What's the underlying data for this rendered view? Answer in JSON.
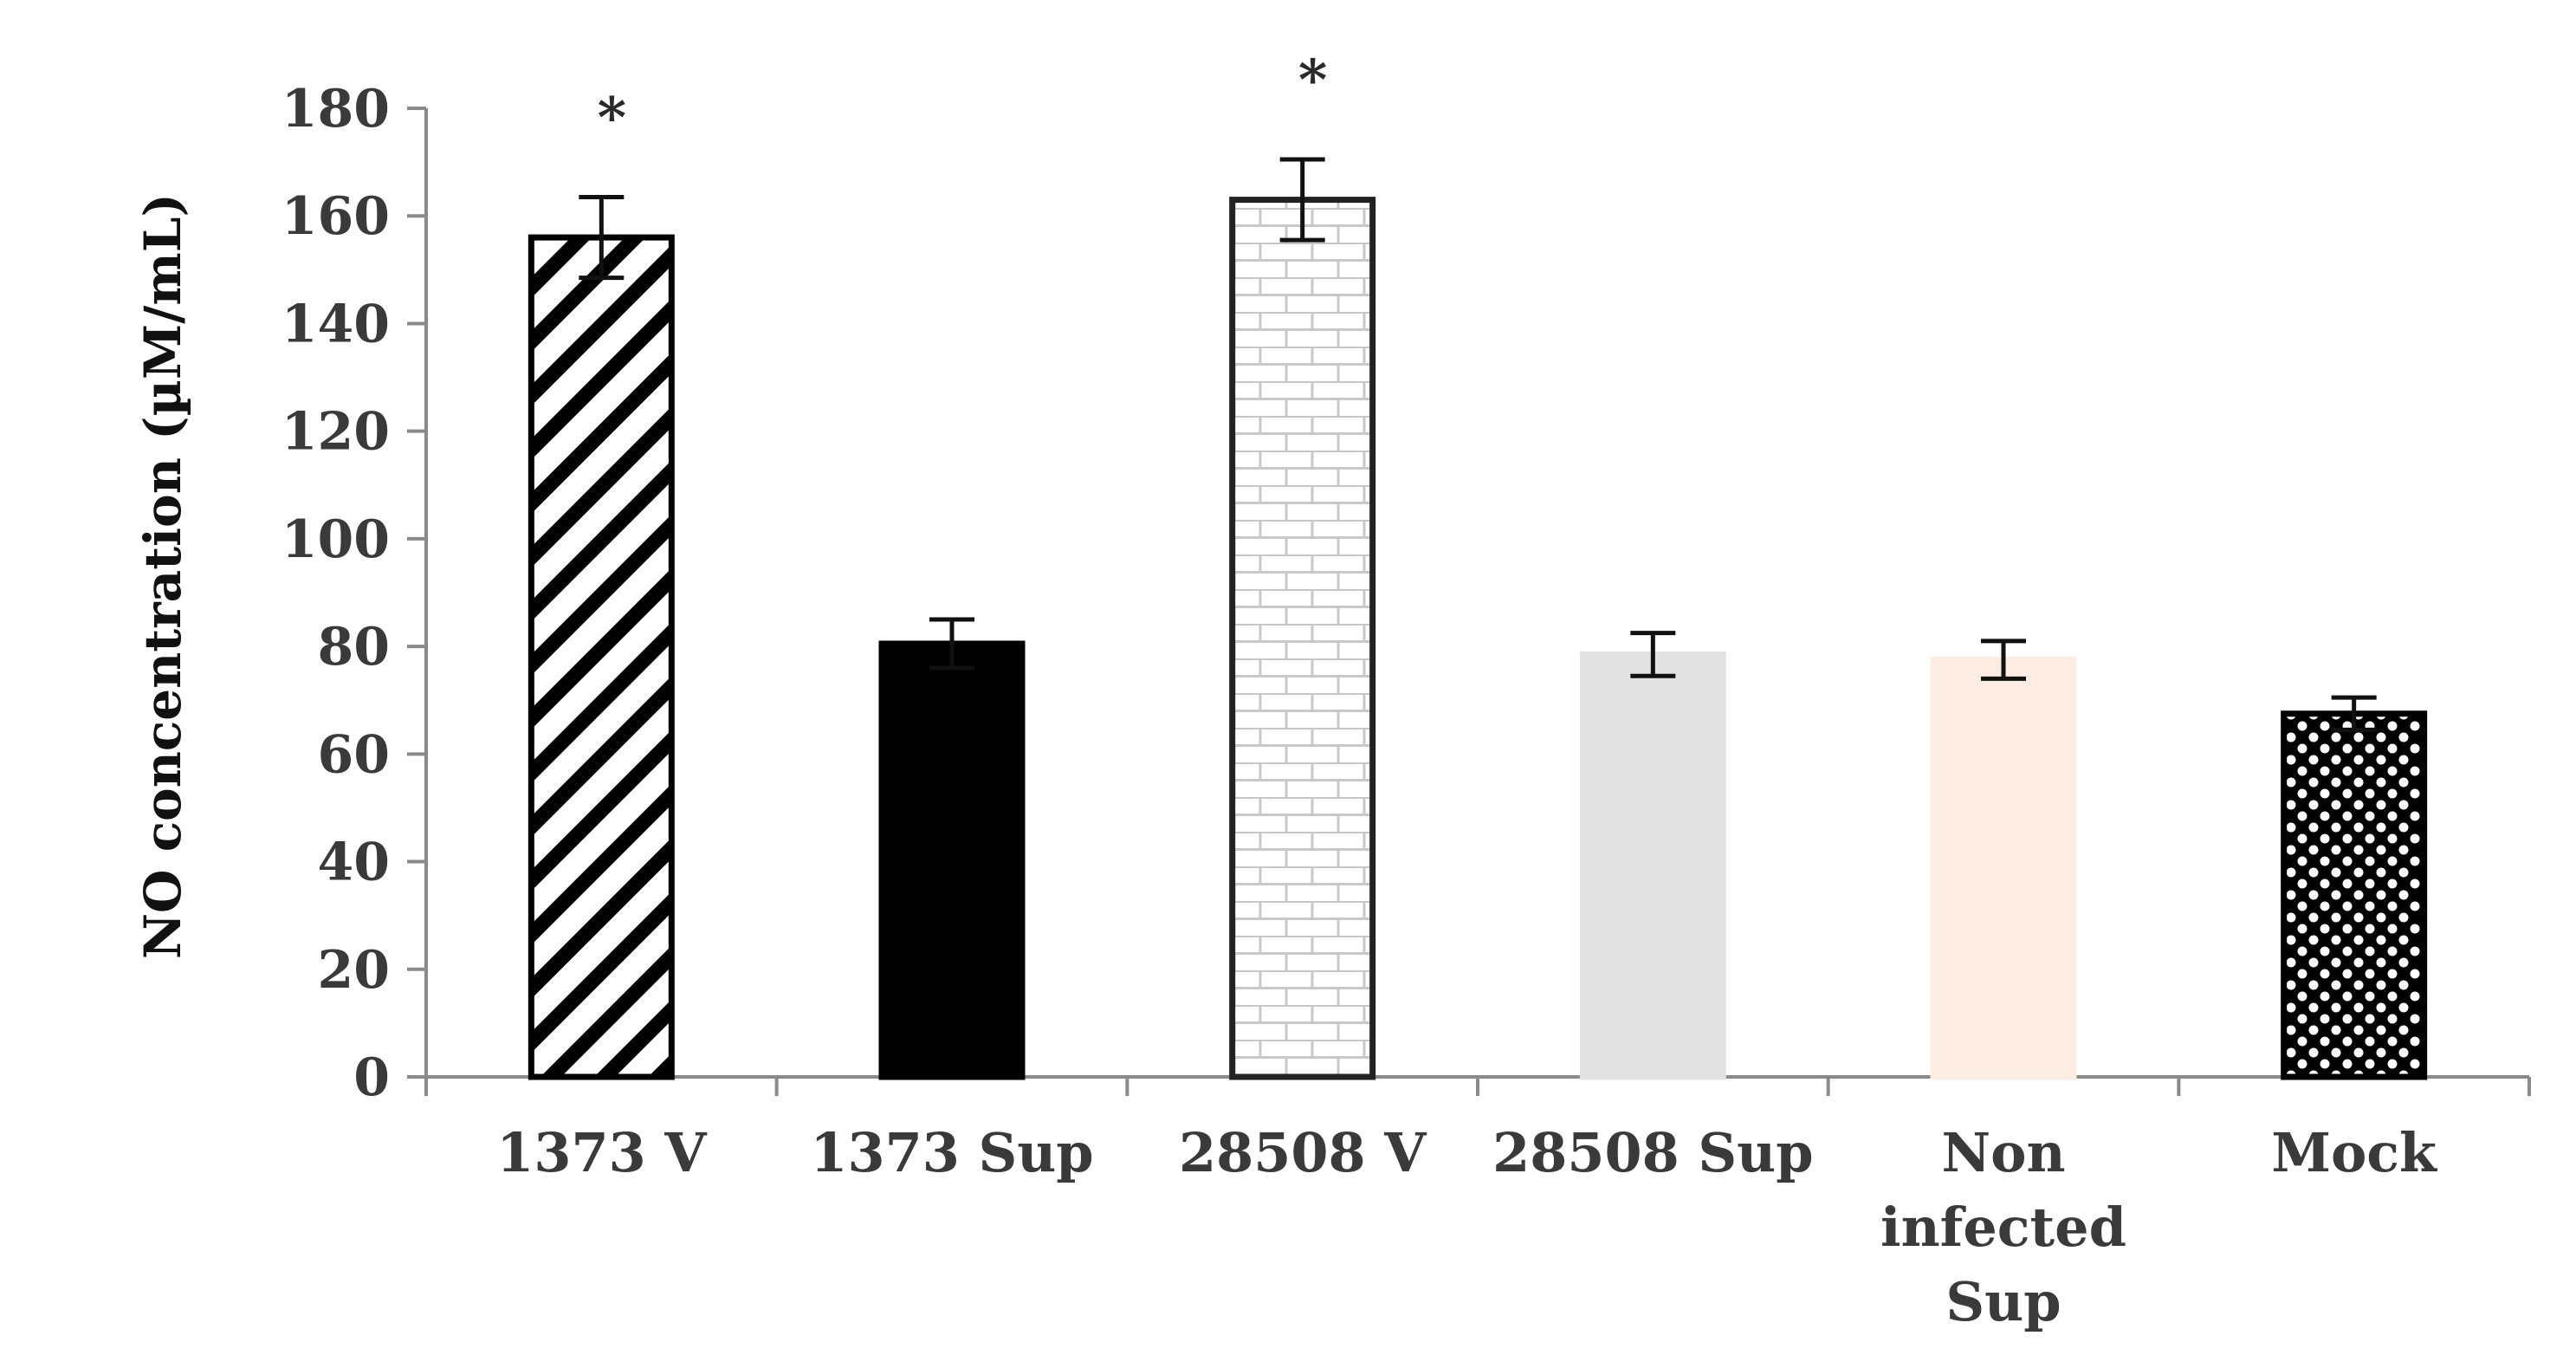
{
  "chart_data": {
    "type": "bar",
    "title": "",
    "xlabel": "",
    "ylabel": "NO concentration (µM/mL)",
    "ylim": [
      0,
      180
    ],
    "yticks": [
      0,
      20,
      40,
      60,
      80,
      100,
      120,
      140,
      160,
      180
    ],
    "grid": false,
    "legend": "none",
    "categories": [
      [
        "1373 V"
      ],
      [
        "1373 Sup"
      ],
      [
        "28508 V"
      ],
      [
        "28508 Sup"
      ],
      [
        "Non",
        "infected",
        "Sup"
      ],
      [
        "Mock"
      ]
    ],
    "values": [
      156,
      80.5,
      163,
      78.5,
      77.5,
      67.5
    ],
    "error": [
      7.5,
      4.5,
      7.5,
      4.0,
      3.5,
      3.0
    ],
    "significance": [
      "*",
      "",
      "*",
      "",
      "",
      ""
    ],
    "bar_styles": [
      {
        "pattern": "diagonal-stripes",
        "fill": "#ffffff",
        "stroke": "#000000"
      },
      {
        "pattern": "solid",
        "fill": "#000000",
        "stroke": "#000000"
      },
      {
        "pattern": "bricks",
        "fill": "#ffffff",
        "stroke": "#222222"
      },
      {
        "pattern": "solid",
        "fill": "#e2e2e2",
        "stroke": "#e2e2e2"
      },
      {
        "pattern": "solid",
        "fill": "#fdece2",
        "stroke": "#fdece2"
      },
      {
        "pattern": "dots",
        "fill": "#000000",
        "stroke": "#000000"
      }
    ]
  }
}
